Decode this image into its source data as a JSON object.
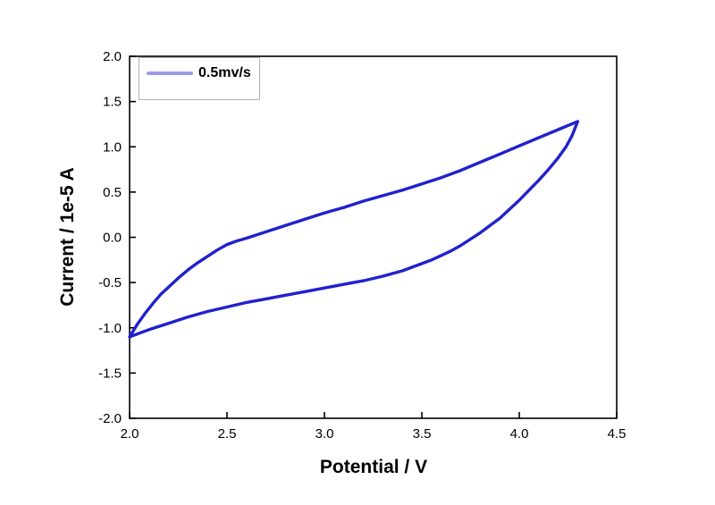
{
  "chart_data": {
    "type": "line",
    "title": "",
    "xlabel": "Potential / V",
    "ylabel": "Current / 1e-5 A",
    "xlim": [
      2.0,
      4.5
    ],
    "ylim": [
      -2.0,
      2.0
    ],
    "x_ticks": [
      2.0,
      2.5,
      3.0,
      3.5,
      4.0,
      4.5
    ],
    "y_ticks": [
      -2.0,
      -1.5,
      -1.0,
      -0.5,
      0.0,
      0.5,
      1.0,
      1.5,
      2.0
    ],
    "x_tick_labels": [
      "2.0",
      "2.5",
      "3.0",
      "3.5",
      "4.0",
      "4.5"
    ],
    "y_tick_labels": [
      "-2.0",
      "-1.5",
      "-1.0",
      "-0.5",
      "0.0",
      "0.5",
      "1.0",
      "1.5",
      "2.0"
    ],
    "grid": false,
    "legend_position": "top-left",
    "series": [
      {
        "name": "0.5mv/s",
        "color": "#2121cd",
        "legend_line_color": "#9b9bea",
        "description": "cyclic voltammogram closed loop: forward sweep (upper branch) then reverse sweep (lower branch)",
        "points": [
          [
            2.0,
            -1.1
          ],
          [
            2.04,
            -0.96
          ],
          [
            2.08,
            -0.84
          ],
          [
            2.12,
            -0.73
          ],
          [
            2.16,
            -0.63
          ],
          [
            2.2,
            -0.55
          ],
          [
            2.25,
            -0.45
          ],
          [
            2.3,
            -0.36
          ],
          [
            2.35,
            -0.28
          ],
          [
            2.4,
            -0.21
          ],
          [
            2.45,
            -0.14
          ],
          [
            2.5,
            -0.08
          ],
          [
            2.55,
            -0.04
          ],
          [
            2.6,
            -0.01
          ],
          [
            2.7,
            0.06
          ],
          [
            2.8,
            0.13
          ],
          [
            2.9,
            0.2
          ],
          [
            3.0,
            0.27
          ],
          [
            3.1,
            0.33
          ],
          [
            3.2,
            0.4
          ],
          [
            3.3,
            0.46
          ],
          [
            3.4,
            0.52
          ],
          [
            3.5,
            0.59
          ],
          [
            3.6,
            0.66
          ],
          [
            3.7,
            0.74
          ],
          [
            3.8,
            0.83
          ],
          [
            3.9,
            0.92
          ],
          [
            4.0,
            1.01
          ],
          [
            4.1,
            1.1
          ],
          [
            4.2,
            1.19
          ],
          [
            4.3,
            1.28
          ],
          [
            4.27,
            1.12
          ],
          [
            4.24,
            1.0
          ],
          [
            4.2,
            0.88
          ],
          [
            4.15,
            0.75
          ],
          [
            4.1,
            0.63
          ],
          [
            4.05,
            0.52
          ],
          [
            4.0,
            0.41
          ],
          [
            3.95,
            0.31
          ],
          [
            3.9,
            0.21
          ],
          [
            3.85,
            0.13
          ],
          [
            3.8,
            0.05
          ],
          [
            3.75,
            -0.02
          ],
          [
            3.7,
            -0.09
          ],
          [
            3.65,
            -0.15
          ],
          [
            3.6,
            -0.2
          ],
          [
            3.55,
            -0.25
          ],
          [
            3.5,
            -0.29
          ],
          [
            3.4,
            -0.37
          ],
          [
            3.3,
            -0.43
          ],
          [
            3.2,
            -0.48
          ],
          [
            3.1,
            -0.52
          ],
          [
            3.0,
            -0.56
          ],
          [
            2.9,
            -0.6
          ],
          [
            2.8,
            -0.64
          ],
          [
            2.7,
            -0.68
          ],
          [
            2.6,
            -0.72
          ],
          [
            2.5,
            -0.77
          ],
          [
            2.4,
            -0.82
          ],
          [
            2.3,
            -0.88
          ],
          [
            2.2,
            -0.95
          ],
          [
            2.1,
            -1.02
          ],
          [
            2.05,
            -1.06
          ],
          [
            2.0,
            -1.1
          ]
        ]
      }
    ]
  },
  "colors": {
    "curve": "#2121cd",
    "legend_line": "#9b9bea",
    "axis": "#000000",
    "background": "#ffffff"
  }
}
